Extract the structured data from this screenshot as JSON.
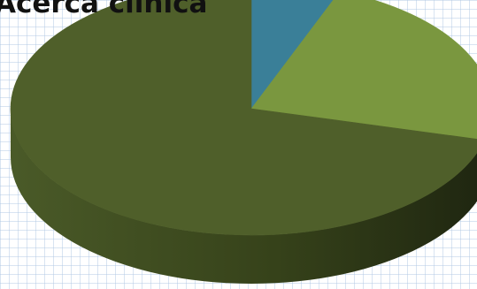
{
  "chart_data": {
    "type": "pie",
    "title": "Acerca clínica",
    "style": "3d",
    "values": [
      6,
      23,
      71
    ],
    "colors": [
      "#3a7f98",
      "#7a973f",
      "#4f5f2a"
    ]
  }
}
